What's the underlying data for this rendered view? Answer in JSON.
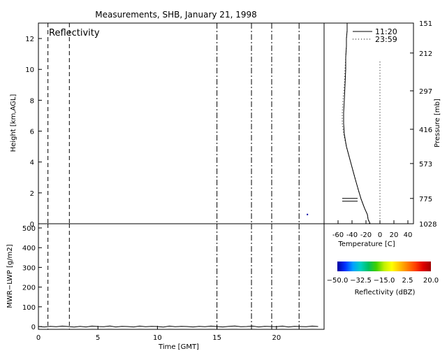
{
  "figure": {
    "title": "Measurements, SHB, January 21, 1998",
    "colors": {
      "axis": "#000000",
      "background": "#ffffff",
      "temp_1120": "#000000",
      "temp_2359": "#000000"
    }
  },
  "chart_data": [
    {
      "id": "reflectivity",
      "type": "heatmap",
      "label": "Reflectivity",
      "xlabel": "",
      "ylabel": "Height [km,AGL]",
      "xlim": [
        0,
        24
      ],
      "ylim": [
        0,
        13
      ],
      "y_ticks": [
        0,
        2,
        4,
        6,
        8,
        10,
        12
      ],
      "right_ylabel": "Pressure [mb]",
      "right_tick_labels": [
        "1028",
        "775",
        "573",
        "416",
        "297",
        "212",
        "151"
      ],
      "right_tick_heights_km": [
        0,
        1.64,
        3.9,
        6.12,
        8.61,
        11.06,
        13
      ],
      "time_markers": [
        {
          "time": 0.8,
          "style": "dashed"
        },
        {
          "time": 2.6,
          "style": "dashed"
        },
        {
          "time": 15.0,
          "style": "dashdot"
        },
        {
          "time": 17.9,
          "style": "dashdot"
        },
        {
          "time": 19.6,
          "style": "dashdot"
        },
        {
          "time": 21.9,
          "style": "dashdot"
        }
      ],
      "echo_points": [
        {
          "time": 22.6,
          "height": 0.6
        }
      ]
    },
    {
      "id": "lwp",
      "type": "line",
      "xlabel": "Time [GMT]",
      "ylabel": "MWR−LWP [g/m2]",
      "xlim": [
        0,
        24
      ],
      "ylim": [
        0,
        500
      ],
      "x_ticks": [
        0,
        5,
        10,
        15,
        20
      ],
      "y_ticks": [
        0,
        100,
        200,
        300,
        400,
        500
      ],
      "series": [
        {
          "x": [
            0,
            0.5,
            1,
            1.5,
            2,
            2.5,
            3,
            3.5,
            4,
            4.5,
            5,
            5.5,
            6,
            6.5,
            7,
            7.5,
            8,
            8.5,
            9,
            9.5,
            10,
            10.5,
            11,
            11.5,
            12,
            12.5,
            13,
            13.5,
            14,
            14.5,
            15,
            15.5,
            16,
            16.5,
            17,
            17.5,
            18,
            18.5,
            19,
            19.5,
            20,
            20.5,
            21,
            21.5,
            22,
            22.5,
            23,
            23.5
          ],
          "values": [
            0,
            -2,
            1,
            -1,
            2,
            0,
            -3,
            1,
            -2,
            2,
            0,
            -1,
            3,
            -2,
            1,
            0,
            -2,
            2,
            -1,
            1,
            0,
            -3,
            2,
            -1,
            1,
            0,
            -2,
            1,
            -1,
            2,
            0,
            -2,
            1,
            3,
            -1,
            0,
            2,
            -2,
            1,
            0,
            -1,
            2,
            -2,
            1,
            0,
            -1,
            2,
            0
          ]
        }
      ],
      "time_markers": [
        {
          "time": 0.8,
          "style": "dashed"
        },
        {
          "time": 2.6,
          "style": "dashed"
        },
        {
          "time": 15.0,
          "style": "dashdot"
        },
        {
          "time": 17.9,
          "style": "dashdot"
        },
        {
          "time": 19.6,
          "style": "dashdot"
        },
        {
          "time": 21.9,
          "style": "dashdot"
        }
      ]
    },
    {
      "id": "temperature",
      "type": "line",
      "xlabel": "Temperature [C]",
      "ylabel": "",
      "xlim": [
        -80,
        48
      ],
      "ylim": [
        0,
        13
      ],
      "x_ticks": [
        -60,
        -40,
        -20,
        0,
        20,
        40
      ],
      "x_tick_labels": [
        "-60",
        "-40",
        "-20",
        "0",
        "20",
        "40"
      ],
      "reference_line": {
        "x": 0,
        "style": "dotted"
      },
      "legend_position": "top-right",
      "series": [
        {
          "name": "11:20",
          "style": "solid",
          "x": [
            -14,
            -17,
            -18,
            -22,
            -27,
            -31,
            -36,
            -42,
            -48,
            -51,
            -52,
            -52,
            -51,
            -50,
            -49,
            -49,
            -48,
            -48,
            -47,
            -47
          ],
          "y": [
            0.0,
            0.3,
            0.6,
            1.0,
            1.6,
            2.2,
            3.0,
            4.0,
            5.0,
            5.8,
            6.5,
            7.2,
            8.0,
            9.0,
            10.0,
            10.8,
            11.5,
            12.0,
            12.5,
            13.0
          ]
        },
        {
          "name": "23:59",
          "style": "dotted",
          "x": [
            -15,
            -17,
            -18,
            -22,
            -27,
            -31,
            -36,
            -42,
            -48,
            -52,
            -54,
            -54,
            -53,
            -51,
            -50,
            -49,
            -48,
            -48,
            -47,
            -47
          ],
          "y": [
            0.0,
            0.3,
            0.6,
            1.0,
            1.6,
            2.2,
            3.0,
            4.0,
            5.0,
            5.8,
            6.5,
            7.2,
            8.0,
            9.0,
            10.0,
            10.8,
            11.5,
            12.0,
            12.5,
            13.0
          ]
        }
      ],
      "wind_barb": {
        "x": -40,
        "y": 1.64
      }
    },
    {
      "id": "colorbar",
      "type": "heatmap",
      "xlabel": "Reflectivity (dBZ)",
      "range": [
        -50,
        20
      ],
      "tick_labels": [
        "−50.0",
        "−32.5",
        "−15.0",
        "2.5",
        "20.0"
      ],
      "tick_values": [
        -50,
        -32.5,
        -15,
        2.5,
        20
      ],
      "color_stops": [
        "#0000a0",
        "#0030ff",
        "#00a0ff",
        "#00d0c0",
        "#00c060",
        "#40d000",
        "#c0f000",
        "#ffff00",
        "#ffc000",
        "#ff8000",
        "#ff4000",
        "#e00000",
        "#a00000"
      ]
    }
  ]
}
